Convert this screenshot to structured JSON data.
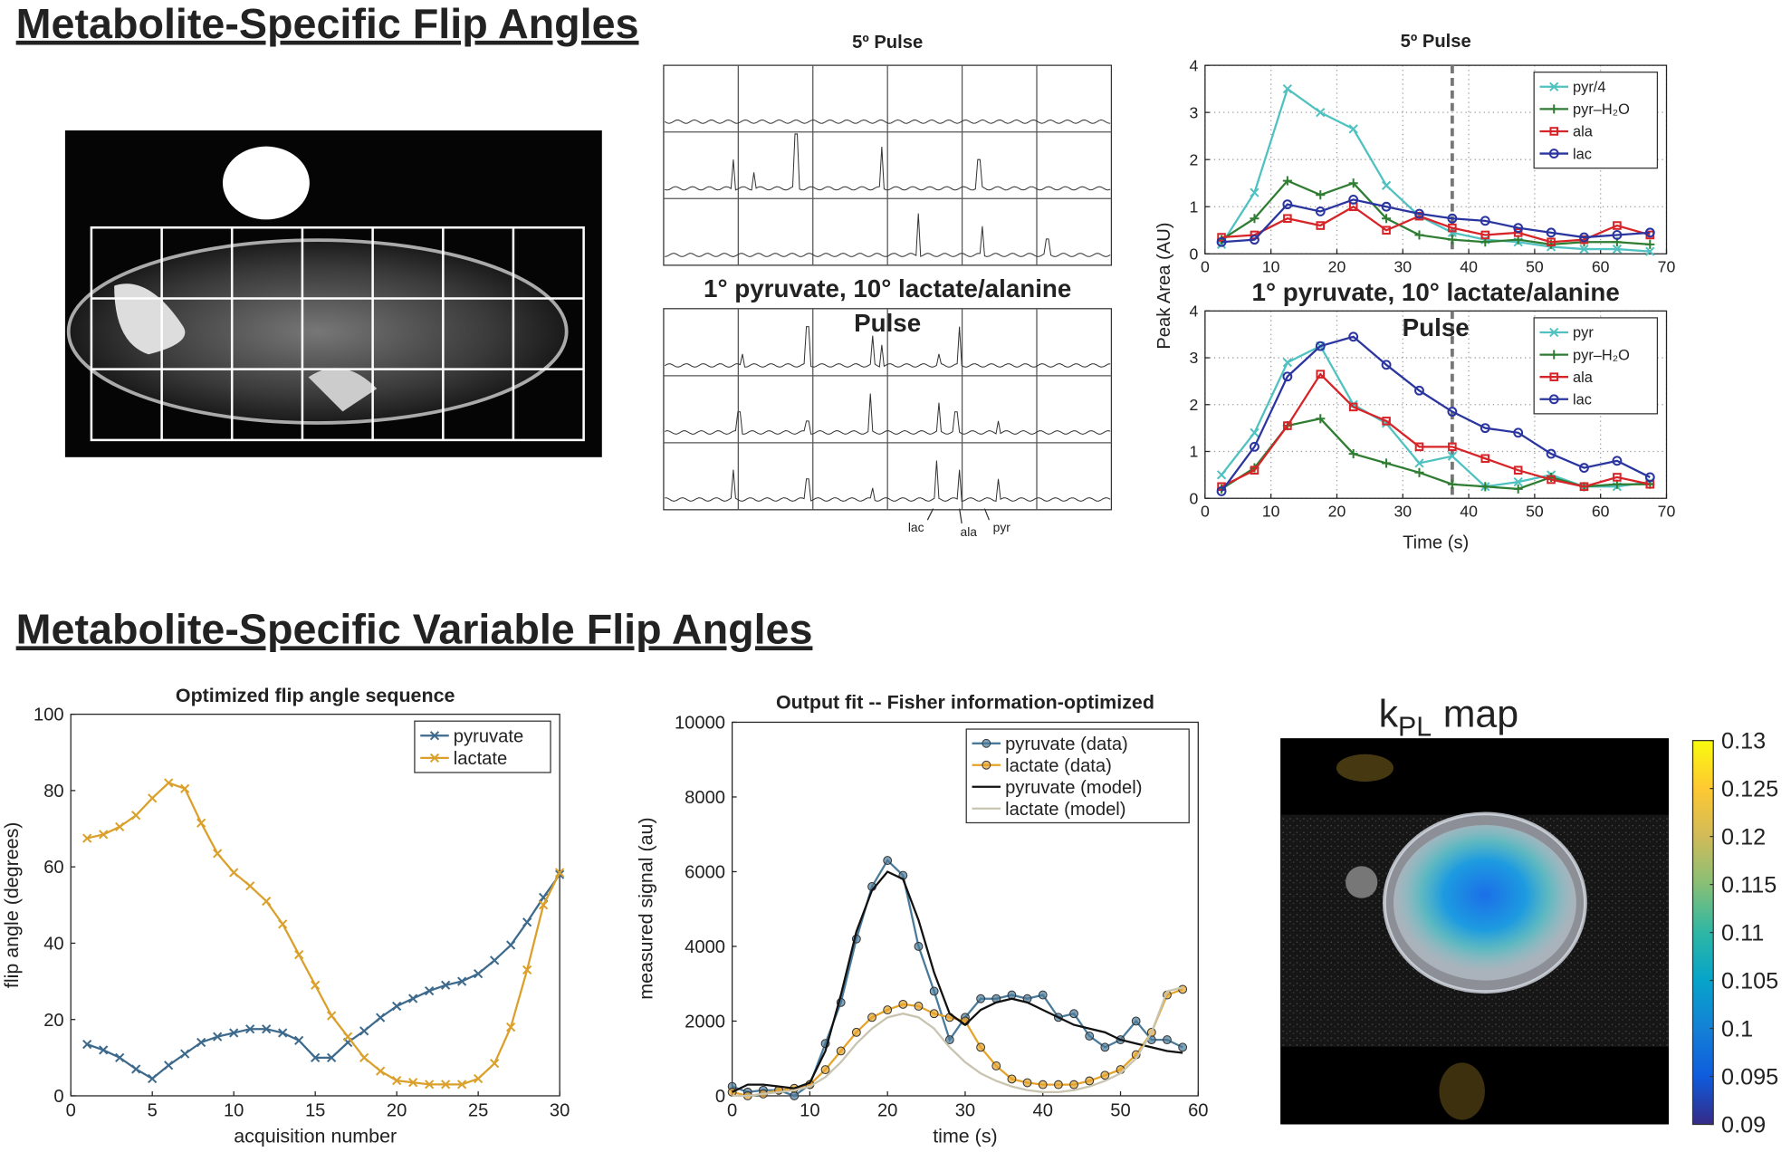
{
  "headings": [
    "Metabolite-Specific Flip Angles",
    "Metabolite-Specific Variable Flip Angles"
  ],
  "spectra": {
    "title": "5º Pulse",
    "title2": [
      "1° pyruvate,  10°  lactate/alanine",
      "Pulse"
    ],
    "peak_labels": [
      "lac",
      "ala",
      "pyr"
    ]
  },
  "chart_data": [
    {
      "type": "line",
      "title": "5º Pulse",
      "ylabel": "Peak Area (AU)",
      "x": [
        2.5,
        7.5,
        12.5,
        17.5,
        22.5,
        27.5,
        32.5,
        37.5,
        42.5,
        47.5,
        52.5,
        57.5,
        62.5,
        67.5
      ],
      "xlim": [
        0,
        70
      ],
      "ylim": [
        0,
        4
      ],
      "xticks": [
        0,
        10,
        20,
        30,
        40,
        50,
        60,
        70
      ],
      "yticks": [
        0,
        1,
        2,
        3,
        4
      ],
      "grid": true,
      "legend": "upper right",
      "vline": 37.5,
      "series": [
        {
          "name": "pyr/4",
          "color": "#4fc1c0",
          "marker": "x",
          "values": [
            0.2,
            1.3,
            3.5,
            3.0,
            2.65,
            1.45,
            0.8,
            0.45,
            0.3,
            0.25,
            0.15,
            0.1,
            0.1,
            0.05
          ]
        },
        {
          "name": "pyr–H₂O",
          "color": "#2f7d32",
          "marker": "+",
          "values": [
            0.3,
            0.75,
            1.55,
            1.25,
            1.5,
            0.75,
            0.4,
            0.3,
            0.25,
            0.3,
            0.2,
            0.25,
            0.25,
            0.2
          ]
        },
        {
          "name": "ala",
          "color": "#d62428",
          "marker": "square",
          "values": [
            0.35,
            0.4,
            0.75,
            0.6,
            1.0,
            0.5,
            0.8,
            0.55,
            0.4,
            0.45,
            0.25,
            0.3,
            0.6,
            0.4
          ]
        },
        {
          "name": "lac",
          "color": "#2a35a0",
          "marker": "circle",
          "values": [
            0.25,
            0.3,
            1.05,
            0.9,
            1.15,
            1.0,
            0.85,
            0.75,
            0.7,
            0.55,
            0.45,
            0.35,
            0.4,
            0.45
          ]
        }
      ]
    },
    {
      "type": "line",
      "title": [
        "1° pyruvate,  10°  lactate/alanine",
        "Pulse"
      ],
      "xlabel": "Time (s)",
      "x": [
        2.5,
        7.5,
        12.5,
        17.5,
        22.5,
        27.5,
        32.5,
        37.5,
        42.5,
        47.5,
        52.5,
        57.5,
        62.5,
        67.5
      ],
      "xlim": [
        0,
        70
      ],
      "ylim": [
        0,
        4
      ],
      "xticks": [
        0,
        10,
        20,
        30,
        40,
        50,
        60,
        70
      ],
      "yticks": [
        0,
        1,
        2,
        3,
        4
      ],
      "grid": true,
      "legend": "upper right",
      "vline": 37.5,
      "series": [
        {
          "name": "pyr",
          "color": "#4fc1c0",
          "marker": "x",
          "values": [
            0.5,
            1.4,
            2.9,
            3.25,
            2.0,
            1.6,
            0.75,
            0.9,
            0.25,
            0.35,
            0.5,
            0.25,
            0.25,
            0.35
          ]
        },
        {
          "name": "pyr–H₂O",
          "color": "#2f7d32",
          "marker": "+",
          "values": [
            0.2,
            0.65,
            1.55,
            1.7,
            0.95,
            0.75,
            0.55,
            0.3,
            0.25,
            0.2,
            0.45,
            0.25,
            0.3,
            0.3
          ]
        },
        {
          "name": "ala",
          "color": "#d62428",
          "marker": "square",
          "values": [
            0.25,
            0.6,
            1.55,
            2.65,
            1.95,
            1.65,
            1.1,
            1.1,
            0.85,
            0.6,
            0.4,
            0.25,
            0.45,
            0.3
          ]
        },
        {
          "name": "lac",
          "color": "#2a35a0",
          "marker": "circle",
          "values": [
            0.15,
            1.1,
            2.6,
            3.25,
            3.45,
            2.85,
            2.3,
            1.85,
            1.5,
            1.4,
            0.95,
            0.65,
            0.8,
            0.45
          ]
        }
      ]
    },
    {
      "type": "line",
      "title": "Optimized flip angle sequence",
      "xlabel": "acquisition number",
      "ylabel": "flip angle (degrees)",
      "x": [
        1,
        2,
        3,
        4,
        5,
        6,
        7,
        8,
        9,
        10,
        11,
        12,
        13,
        14,
        15,
        16,
        17,
        18,
        19,
        20,
        21,
        22,
        23,
        24,
        25,
        26,
        27,
        28,
        29,
        30
      ],
      "xlim": [
        0,
        30
      ],
      "ylim": [
        0,
        100
      ],
      "xticks": [
        0,
        5,
        10,
        15,
        20,
        25,
        30
      ],
      "yticks": [
        0,
        20,
        40,
        60,
        80,
        100
      ],
      "grid": false,
      "legend": "upper right",
      "series": [
        {
          "name": "pyruvate",
          "color": "#3d6a8c",
          "marker": "x",
          "values": [
            13.5,
            12,
            10,
            7,
            4.5,
            8,
            11,
            14,
            15.5,
            16.5,
            17.5,
            17.5,
            16.5,
            14.5,
            10,
            10,
            14,
            17,
            20.5,
            23.5,
            25.5,
            27.5,
            29,
            30,
            32,
            35.5,
            39.5,
            45.5,
            52,
            58
          ]
        },
        {
          "name": "lactate",
          "color": "#daa02b",
          "marker": "x",
          "values": [
            67.5,
            68.5,
            70.5,
            73.5,
            78,
            82,
            80.5,
            71.5,
            63.5,
            58.5,
            55,
            51,
            45,
            37,
            29,
            21,
            15.5,
            10,
            6.5,
            4,
            3.5,
            3,
            3,
            3,
            4.5,
            8.5,
            18,
            33,
            50,
            58.5
          ]
        }
      ]
    },
    {
      "type": "line",
      "title": "Output fit -- Fisher information-optimized",
      "xlabel": "time (s)",
      "ylabel": "measured signal (au)",
      "x": [
        0,
        2,
        4,
        6,
        8,
        10,
        12,
        14,
        16,
        18,
        20,
        22,
        24,
        26,
        28,
        30,
        32,
        34,
        36,
        38,
        40,
        42,
        44,
        46,
        48,
        50,
        52,
        54,
        56,
        58
      ],
      "xlim": [
        0,
        60
      ],
      "ylim": [
        0,
        10000
      ],
      "xticks": [
        0,
        10,
        20,
        30,
        40,
        50,
        60
      ],
      "yticks": [
        0,
        2000,
        4000,
        6000,
        8000,
        10000
      ],
      "grid": false,
      "legend": "upper right",
      "series": [
        {
          "name": "pyruvate (data)",
          "color": "#4a7a9a",
          "marker": "dot",
          "values": [
            250,
            100,
            150,
            150,
            0,
            300,
            1400,
            2500,
            4200,
            5600,
            6300,
            5900,
            4000,
            2800,
            1500,
            2100,
            2600,
            2600,
            2700,
            2600,
            2700,
            2100,
            2200,
            1600,
            1300,
            1500,
            2000,
            1500,
            1500,
            1300
          ]
        },
        {
          "name": "lactate (data)",
          "color": "#e5a32a",
          "marker": "dot",
          "values": [
            100,
            0,
            50,
            150,
            200,
            300,
            700,
            1200,
            1700,
            2100,
            2300,
            2450,
            2400,
            2200,
            2100,
            2000,
            1300,
            800,
            450,
            350,
            300,
            300,
            300,
            400,
            550,
            700,
            1100,
            1700,
            2700,
            2850
          ]
        },
        {
          "name": "pyruvate (model)",
          "color": "#111111",
          "marker": "none",
          "values": [
            100,
            300,
            300,
            250,
            200,
            350,
            1200,
            2700,
            4400,
            5500,
            6000,
            5800,
            4700,
            3300,
            2200,
            1900,
            2300,
            2500,
            2600,
            2500,
            2300,
            2100,
            1900,
            1800,
            1700,
            1500,
            1400,
            1300,
            1200,
            1150
          ]
        },
        {
          "name": "lactate (model)",
          "color": "#c8c4b0",
          "marker": "none",
          "values": [
            0,
            0,
            50,
            100,
            150,
            250,
            500,
            900,
            1400,
            1800,
            2100,
            2200,
            2100,
            1800,
            1300,
            900,
            600,
            400,
            250,
            150,
            100,
            100,
            150,
            250,
            400,
            600,
            1000,
            1700,
            2800,
            2900
          ]
        }
      ]
    },
    {
      "type": "colorbar",
      "title_parts": [
        "k",
        "PL",
        "map"
      ],
      "ylim": [
        0.09,
        0.13
      ],
      "yticks": [
        0.09,
        0.095,
        0.1,
        0.105,
        0.11,
        0.115,
        0.12,
        0.125,
        0.13
      ],
      "colormap": [
        "#352a87",
        "#0f5cdd",
        "#1481d6",
        "#06a4ca",
        "#2eb7a4",
        "#87bf77",
        "#d1bb59",
        "#fec832",
        "#f9fb0e"
      ]
    }
  ]
}
